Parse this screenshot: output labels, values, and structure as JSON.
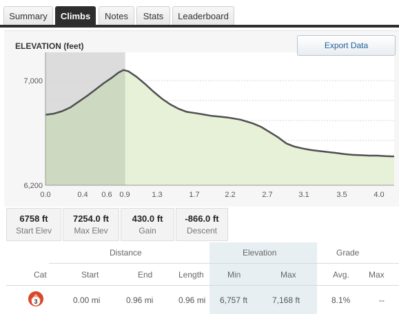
{
  "tabs": [
    {
      "label": "Summary",
      "active": false
    },
    {
      "label": "Climbs",
      "active": true
    },
    {
      "label": "Notes",
      "active": false
    },
    {
      "label": "Stats",
      "active": false
    },
    {
      "label": "Leaderboard",
      "active": false
    }
  ],
  "chart": {
    "title": "ELEVATION (feet)",
    "export_label": "Export Data"
  },
  "chart_data": {
    "type": "area",
    "title": "ELEVATION (feet)",
    "xlabel": "",
    "ylabel": "",
    "xlim": [
      0,
      4.2
    ],
    "ylim": [
      6200,
      7250
    ],
    "x_ticks": [
      "0.0",
      "0.4",
      "0.6",
      "0.9",
      "1.3",
      "1.7",
      "2.2",
      "2.7",
      "3.1",
      "3.5",
      "4.0"
    ],
    "y_ticks": [
      "7,000",
      "6,200"
    ],
    "highlight_range": [
      0,
      0.96
    ],
    "grid": true,
    "series": [
      {
        "x": [
          0.0,
          0.1,
          0.2,
          0.3,
          0.4,
          0.5,
          0.6,
          0.7,
          0.8,
          0.88,
          0.94,
          1.0,
          1.1,
          1.2,
          1.3,
          1.4,
          1.5,
          1.6,
          1.7,
          1.8,
          1.9,
          2.0,
          2.1,
          2.2,
          2.35,
          2.5,
          2.6,
          2.7,
          2.8,
          2.9,
          3.0,
          3.1,
          3.2,
          3.3,
          3.4,
          3.5,
          3.6,
          3.7,
          3.8,
          3.9,
          4.0,
          4.1,
          4.2
        ],
        "y": [
          6757,
          6765,
          6785,
          6815,
          6860,
          6905,
          6955,
          7005,
          7050,
          7090,
          7110,
          7100,
          7055,
          7000,
          6940,
          6885,
          6840,
          6805,
          6780,
          6770,
          6760,
          6748,
          6742,
          6735,
          6718,
          6688,
          6660,
          6620,
          6580,
          6530,
          6505,
          6490,
          6478,
          6470,
          6462,
          6455,
          6446,
          6440,
          6437,
          6434,
          6434,
          6430,
          6428
        ]
      }
    ]
  },
  "stats": [
    {
      "value": "6758 ft",
      "label": "Start Elev"
    },
    {
      "value": "7254.0 ft",
      "label": "Max Elev"
    },
    {
      "value": "430.0 ft",
      "label": "Gain"
    },
    {
      "value": "-866.0 ft",
      "label": "Descent"
    }
  ],
  "table": {
    "groups": {
      "distance": "Distance",
      "elevation": "Elevation",
      "grade": "Grade"
    },
    "columns": {
      "cat": "Cat",
      "start": "Start",
      "end": "End",
      "length": "Length",
      "min": "Min",
      "max": "Max",
      "avg": "Avg.",
      "grade_max": "Max"
    },
    "rows": [
      {
        "cat": "3",
        "start": "0.00 mi",
        "end": "0.96 mi",
        "length": "0.96 mi",
        "min": "6,757 ft",
        "max": "7,168 ft",
        "avg": "8.1%",
        "grade_max": "--"
      }
    ]
  },
  "colors": {
    "dark": "#2e2e2e",
    "area": "#e6f1d8",
    "highlight": "#dcdcdc",
    "line": "#555555",
    "badge": "#d9472b"
  }
}
